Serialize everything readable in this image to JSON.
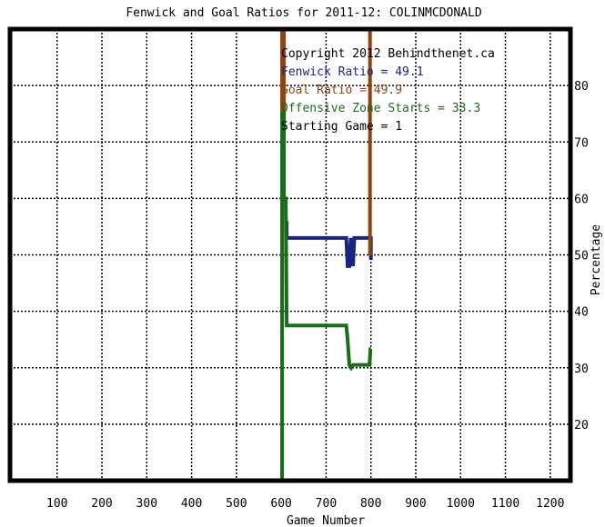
{
  "chart_data": {
    "type": "line",
    "title": "Fenwick and Goal Ratios for 2011-12: COLINMCDONALD",
    "xlabel": "Game Number",
    "ylabel": "Percentage",
    "xlim": [
      -5,
      1245
    ],
    "ylim": [
      10,
      90
    ],
    "x_ticks": [
      100,
      200,
      300,
      400,
      500,
      600,
      700,
      800,
      900,
      1000,
      1100,
      1200
    ],
    "y_ticks": [
      20,
      30,
      40,
      50,
      60,
      70,
      80
    ],
    "grid": true,
    "legend_position": "top-center",
    "annotations": [
      {
        "text": "Copyright 2012 Behindthenet.ca",
        "color": "#000000"
      },
      {
        "text": "Fenwick Ratio = 49.1",
        "color": "#1a237e"
      },
      {
        "text": "Goal Ratio = 49.9",
        "color": "#8b4513"
      },
      {
        "text": "Offensive Zone Starts = 33.3",
        "color": "#1b6b1b"
      },
      {
        "text": "Starting Game = 1",
        "color": "#000000"
      }
    ],
    "series": [
      {
        "name": "Fenwick Ratio",
        "color": "#1a237e",
        "x": [
          612,
          612,
          615,
          745,
          748,
          752,
          755,
          760,
          763,
          795,
          800,
          800
        ],
        "y": [
          56,
          53,
          53,
          53,
          48,
          48,
          53,
          48,
          53,
          53,
          53,
          49.1
        ]
      },
      {
        "name": "Goal Ratio",
        "color": "#8b4513",
        "x": [
          602,
          602,
          606,
          606,
          798,
          798
        ],
        "y": [
          90,
          75,
          75,
          90,
          90,
          49.9
        ]
      },
      {
        "name": "Offensive Zone Starts",
        "color": "#1b6b1b",
        "x": [
          602,
          602,
          606,
          606,
          610,
          612,
          614,
          745,
          748,
          752,
          756,
          760,
          797,
          799,
          800
        ],
        "y": [
          10,
          75,
          75,
          60,
          60,
          37.5,
          37.5,
          37.5,
          35,
          30.5,
          30,
          30.5,
          30.5,
          33.3,
          33.3
        ]
      }
    ]
  }
}
